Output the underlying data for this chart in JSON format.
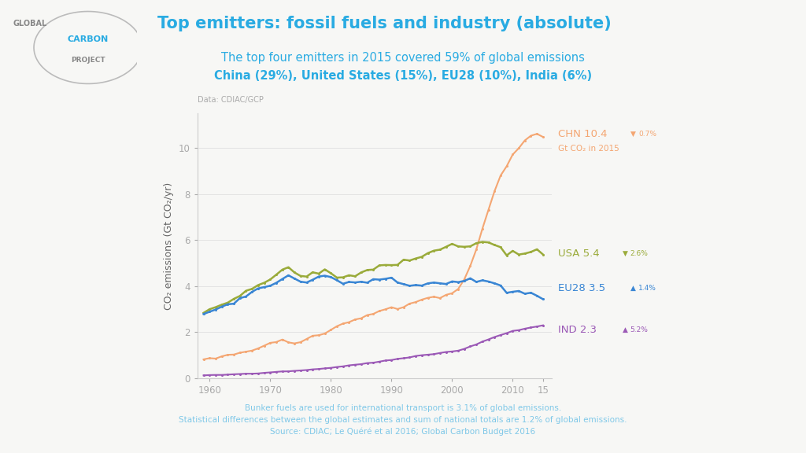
{
  "title": "Top emitters: fossil fuels and industry (absolute)",
  "subtitle1": "The top four emitters in 2015 covered 59% of global emissions",
  "subtitle2": "China (29%), United States (15%), EU28 (10%), India (6%)",
  "data_source": "Data: CDIAC/GCP",
  "background_color": "#f7f7f5",
  "plot_bg_color": "#f7f7f5",
  "title_color": "#29abe2",
  "subtitle_color": "#29abe2",
  "footer_color": "#7fc8e8",
  "ylabel": "CO₂ emissions (Gt CO₂/yr)",
  "xlim": [
    1958,
    2016.5
  ],
  "ylim": [
    0,
    11.5
  ],
  "yticks": [
    0,
    2,
    4,
    6,
    8,
    10
  ],
  "xticks": [
    1960,
    1970,
    1980,
    1990,
    2000,
    2010,
    2015
  ],
  "xticklabels": [
    "1960",
    "1970",
    "1980",
    "1990",
    "2000",
    "2010",
    "15"
  ],
  "series": {
    "CHN": {
      "color": "#f4a672",
      "label": "CHN 10.4",
      "arrow": "▼",
      "pct": "0.7%",
      "sublabel": "Gt CO₂ in 2015",
      "linewidth": 1.5
    },
    "USA": {
      "color": "#9aab3a",
      "label": "USA 5.4",
      "arrow": "▼",
      "pct": "2.6%",
      "linewidth": 1.8
    },
    "EU28": {
      "color": "#3a86d4",
      "label": "EU28 3.5",
      "arrow": "▲",
      "pct": "1.4%",
      "linewidth": 1.8
    },
    "IND": {
      "color": "#9b59b6",
      "label": "IND 2.3",
      "arrow": "▲",
      "pct": "5.2%",
      "linewidth": 1.5
    }
  },
  "footer_line1": "Bunker fuels are used for international transport is 3.1% of global emissions.",
  "footer_line2": "Statistical differences between the global estimates and sum of national totals are 1.2% of global emissions.",
  "footer_line3": "Source: CDIAC; Le Quéré et al 2016; Global Carbon Budget 2016"
}
